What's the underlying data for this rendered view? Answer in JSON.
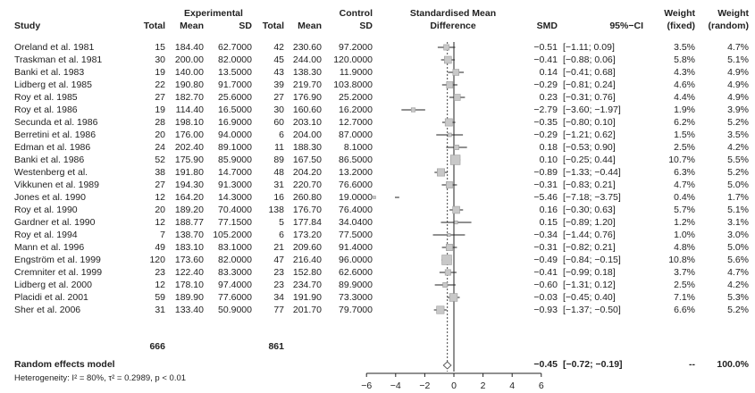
{
  "headers": {
    "study": "Study",
    "experimental": "Experimental",
    "control": "Control",
    "total": "Total",
    "mean": "Mean",
    "sd": "SD",
    "smd_title_1": "Standardised Mean",
    "smd_title_2": "Difference",
    "smd": "SMD",
    "ci": "95%−CI",
    "weight_fixed_1": "Weight",
    "weight_fixed_2": "(fixed)",
    "weight_random_1": "Weight",
    "weight_random_2": "(random)"
  },
  "totals": {
    "experimental": "666",
    "control": "861"
  },
  "summary": {
    "label": "Random effects model",
    "smd": "−0.45",
    "ci": "[−0.72; −0.19]",
    "weight_fixed": "--",
    "weight_random": "100.0%",
    "heterogeneity": "Heterogeneity: I² = 80%, τ² = 0.2989, p < 0.01"
  },
  "axis_ticks": [
    "−6",
    "−4",
    "−2",
    "0",
    "2",
    "4",
    "6"
  ],
  "chart_data": {
    "type": "forest",
    "xlim": [
      -6,
      6
    ],
    "ticks": [
      -6,
      -4,
      -2,
      0,
      2,
      4,
      6
    ],
    "pooled": {
      "smd": -0.45,
      "lo": -0.72,
      "hi": -0.19
    },
    "studies": [
      {
        "study": "Oreland et al. 1981",
        "n1": "15",
        "m1": "184.40",
        "sd1": "62.7000",
        "n2": "42",
        "m2": "230.60",
        "sd2": "97.2000",
        "smd": -0.51,
        "lo": -1.11,
        "hi": 0.09,
        "smd_txt": "−0.51",
        "ci_txt": "[−1.11; 0.09]",
        "wf": "3.5%",
        "wr": "4.7%",
        "w": 3.5
      },
      {
        "study": "Traskman et al. 1981",
        "n1": "30",
        "m1": "200.00",
        "sd1": "82.0000",
        "n2": "45",
        "m2": "244.00",
        "sd2": "120.0000",
        "smd": -0.41,
        "lo": -0.88,
        "hi": 0.06,
        "smd_txt": "−0.41",
        "ci_txt": "[−0.88; 0.06]",
        "wf": "5.8%",
        "wr": "5.1%",
        "w": 5.8
      },
      {
        "study": "Banki et al. 1983",
        "n1": "19",
        "m1": "140.00",
        "sd1": "13.5000",
        "n2": "43",
        "m2": "138.30",
        "sd2": "11.9000",
        "smd": 0.14,
        "lo": -0.41,
        "hi": 0.68,
        "smd_txt": "0.14",
        "ci_txt": "[−0.41; 0.68]",
        "wf": "4.3%",
        "wr": "4.9%",
        "w": 4.3
      },
      {
        "study": "Lidberg et al. 1985",
        "n1": "22",
        "m1": "190.80",
        "sd1": "91.7000",
        "n2": "39",
        "m2": "219.70",
        "sd2": "103.8000",
        "smd": -0.29,
        "lo": -0.81,
        "hi": 0.24,
        "smd_txt": "−0.29",
        "ci_txt": "[−0.81; 0.24]",
        "wf": "4.6%",
        "wr": "4.9%",
        "w": 4.6
      },
      {
        "study": "Roy et al. 1985",
        "n1": "27",
        "m1": "182.70",
        "sd1": "25.6000",
        "n2": "27",
        "m2": "176.90",
        "sd2": "25.2000",
        "smd": 0.23,
        "lo": -0.31,
        "hi": 0.76,
        "smd_txt": "0.23",
        "ci_txt": "[−0.31; 0.76]",
        "wf": "4.4%",
        "wr": "4.9%",
        "w": 4.4
      },
      {
        "study": "Roy et al. 1986",
        "n1": "19",
        "m1": "114.40",
        "sd1": "16.5000",
        "n2": "30",
        "m2": "160.60",
        "sd2": "16.2000",
        "smd": -2.79,
        "lo": -3.6,
        "hi": -1.97,
        "smd_txt": "−2.79",
        "ci_txt": "[−3.60; −1.97]",
        "wf": "1.9%",
        "wr": "3.9%",
        "w": 1.9
      },
      {
        "study": "Secunda et al. 1986",
        "n1": "28",
        "m1": "198.10",
        "sd1": "16.9000",
        "n2": "60",
        "m2": "203.10",
        "sd2": "12.7000",
        "smd": -0.35,
        "lo": -0.8,
        "hi": 0.1,
        "smd_txt": "−0.35",
        "ci_txt": "[−0.80; 0.10]",
        "wf": "6.2%",
        "wr": "5.2%",
        "w": 6.2
      },
      {
        "study": "Berretini et al. 1986",
        "n1": "20",
        "m1": "176.00",
        "sd1": "94.0000",
        "n2": "6",
        "m2": "204.00",
        "sd2": "87.0000",
        "smd": -0.29,
        "lo": -1.21,
        "hi": 0.62,
        "smd_txt": "−0.29",
        "ci_txt": "[−1.21; 0.62]",
        "wf": "1.5%",
        "wr": "3.5%",
        "w": 1.5
      },
      {
        "study": "Edman et al. 1986",
        "n1": "24",
        "m1": "202.40",
        "sd1": "89.1000",
        "n2": "11",
        "m2": "188.30",
        "sd2": "8.1000",
        "smd": 0.18,
        "lo": -0.53,
        "hi": 0.9,
        "smd_txt": "0.18",
        "ci_txt": "[−0.53; 0.90]",
        "wf": "2.5%",
        "wr": "4.2%",
        "w": 2.5
      },
      {
        "study": "Banki et al. 1986",
        "n1": "52",
        "m1": "175.90",
        "sd1": "85.9000",
        "n2": "89",
        "m2": "167.50",
        "sd2": "86.5000",
        "smd": 0.1,
        "lo": -0.25,
        "hi": 0.44,
        "smd_txt": "0.10",
        "ci_txt": "[−0.25; 0.44]",
        "wf": "10.7%",
        "wr": "5.5%",
        "w": 10.7
      },
      {
        "study": "Westenberg et al.",
        "n1": "38",
        "m1": "191.80",
        "sd1": "14.7000",
        "n2": "48",
        "m2": "204.20",
        "sd2": "13.2000",
        "smd": -0.89,
        "lo": -1.33,
        "hi": -0.44,
        "smd_txt": "−0.89",
        "ci_txt": "[−1.33; −0.44]",
        "wf": "6.3%",
        "wr": "5.2%",
        "w": 6.3
      },
      {
        "study": "Vikkunen et al. 1989",
        "n1": "27",
        "m1": "194.30",
        "sd1": "91.3000",
        "n2": "31",
        "m2": "220.70",
        "sd2": "76.6000",
        "smd": -0.31,
        "lo": -0.83,
        "hi": 0.21,
        "smd_txt": "−0.31",
        "ci_txt": "[−0.83; 0.21]",
        "wf": "4.7%",
        "wr": "5.0%",
        "w": 4.7
      },
      {
        "study": "Jones et al. 1990",
        "n1": "12",
        "m1": "164.20",
        "sd1": "14.3000",
        "n2": "16",
        "m2": "260.80",
        "sd2": "19.0000",
        "smd": -5.46,
        "lo": -7.18,
        "hi": -3.75,
        "smd_txt": "−5.46",
        "ci_txt": "[−7.18; −3.75]",
        "wf": "0.4%",
        "wr": "1.7%",
        "w": 0.4
      },
      {
        "study": "Roy et al. 1990",
        "n1": "20",
        "m1": "189.20",
        "sd1": "70.4000",
        "n2": "138",
        "m2": "176.70",
        "sd2": "76.4000",
        "smd": 0.16,
        "lo": -0.3,
        "hi": 0.63,
        "smd_txt": "0.16",
        "ci_txt": "[−0.30; 0.63]",
        "wf": "5.7%",
        "wr": "5.1%",
        "w": 5.7
      },
      {
        "study": "Gardner et al. 1990",
        "n1": "12",
        "m1": "188.77",
        "sd1": "77.1500",
        "n2": "5",
        "m2": "177.84",
        "sd2": "34.0400",
        "smd": 0.15,
        "lo": -0.89,
        "hi": 1.2,
        "smd_txt": "0.15",
        "ci_txt": "[−0.89; 1.20]",
        "wf": "1.2%",
        "wr": "3.1%",
        "w": 1.2
      },
      {
        "study": "Roy et al. 1994",
        "n1": "7",
        "m1": "138.70",
        "sd1": "105.2000",
        "n2": "6",
        "m2": "173.20",
        "sd2": "77.5000",
        "smd": -0.34,
        "lo": -1.44,
        "hi": 0.76,
        "smd_txt": "−0.34",
        "ci_txt": "[−1.44; 0.76]",
        "wf": "1.0%",
        "wr": "3.0%",
        "w": 1.0
      },
      {
        "study": "Mann et al. 1996",
        "n1": "49",
        "m1": "183.10",
        "sd1": "83.1000",
        "n2": "21",
        "m2": "209.60",
        "sd2": "91.4000",
        "smd": -0.31,
        "lo": -0.82,
        "hi": 0.21,
        "smd_txt": "−0.31",
        "ci_txt": "[−0.82; 0.21]",
        "wf": "4.8%",
        "wr": "5.0%",
        "w": 4.8
      },
      {
        "study": "Engström et al. 1999",
        "n1": "120",
        "m1": "173.60",
        "sd1": "82.0000",
        "n2": "47",
        "m2": "216.40",
        "sd2": "96.0000",
        "smd": -0.49,
        "lo": -0.84,
        "hi": -0.15,
        "smd_txt": "−0.49",
        "ci_txt": "[−0.84; −0.15]",
        "wf": "10.8%",
        "wr": "5.6%",
        "w": 10.8
      },
      {
        "study": "Cremniter et al. 1999",
        "n1": "23",
        "m1": "122.40",
        "sd1": "83.3000",
        "n2": "23",
        "m2": "152.80",
        "sd2": "62.6000",
        "smd": -0.41,
        "lo": -0.99,
        "hi": 0.18,
        "smd_txt": "−0.41",
        "ci_txt": "[−0.99; 0.18]",
        "wf": "3.7%",
        "wr": "4.7%",
        "w": 3.7
      },
      {
        "study": "Lidberg et al. 2000",
        "n1": "12",
        "m1": "178.10",
        "sd1": "97.4000",
        "n2": "23",
        "m2": "234.70",
        "sd2": "89.9000",
        "smd": -0.6,
        "lo": -1.31,
        "hi": 0.12,
        "smd_txt": "−0.60",
        "ci_txt": "[−1.31; 0.12]",
        "wf": "2.5%",
        "wr": "4.2%",
        "w": 2.5
      },
      {
        "study": "Placidi et al. 2001",
        "n1": "59",
        "m1": "189.90",
        "sd1": "77.6000",
        "n2": "34",
        "m2": "191.90",
        "sd2": "73.3000",
        "smd": -0.03,
        "lo": -0.45,
        "hi": 0.4,
        "smd_txt": "−0.03",
        "ci_txt": "[−0.45; 0.40]",
        "wf": "7.1%",
        "wr": "5.3%",
        "w": 7.1
      },
      {
        "study": "Sher et al. 2006",
        "n1": "31",
        "m1": "133.40",
        "sd1": "50.9000",
        "n2": "77",
        "m2": "201.70",
        "sd2": "79.7000",
        "smd": -0.93,
        "lo": -1.37,
        "hi": -0.5,
        "smd_txt": "−0.93",
        "ci_txt": "[−1.37; −0.50]",
        "wf": "6.6%",
        "wr": "5.2%",
        "w": 6.6
      }
    ]
  }
}
